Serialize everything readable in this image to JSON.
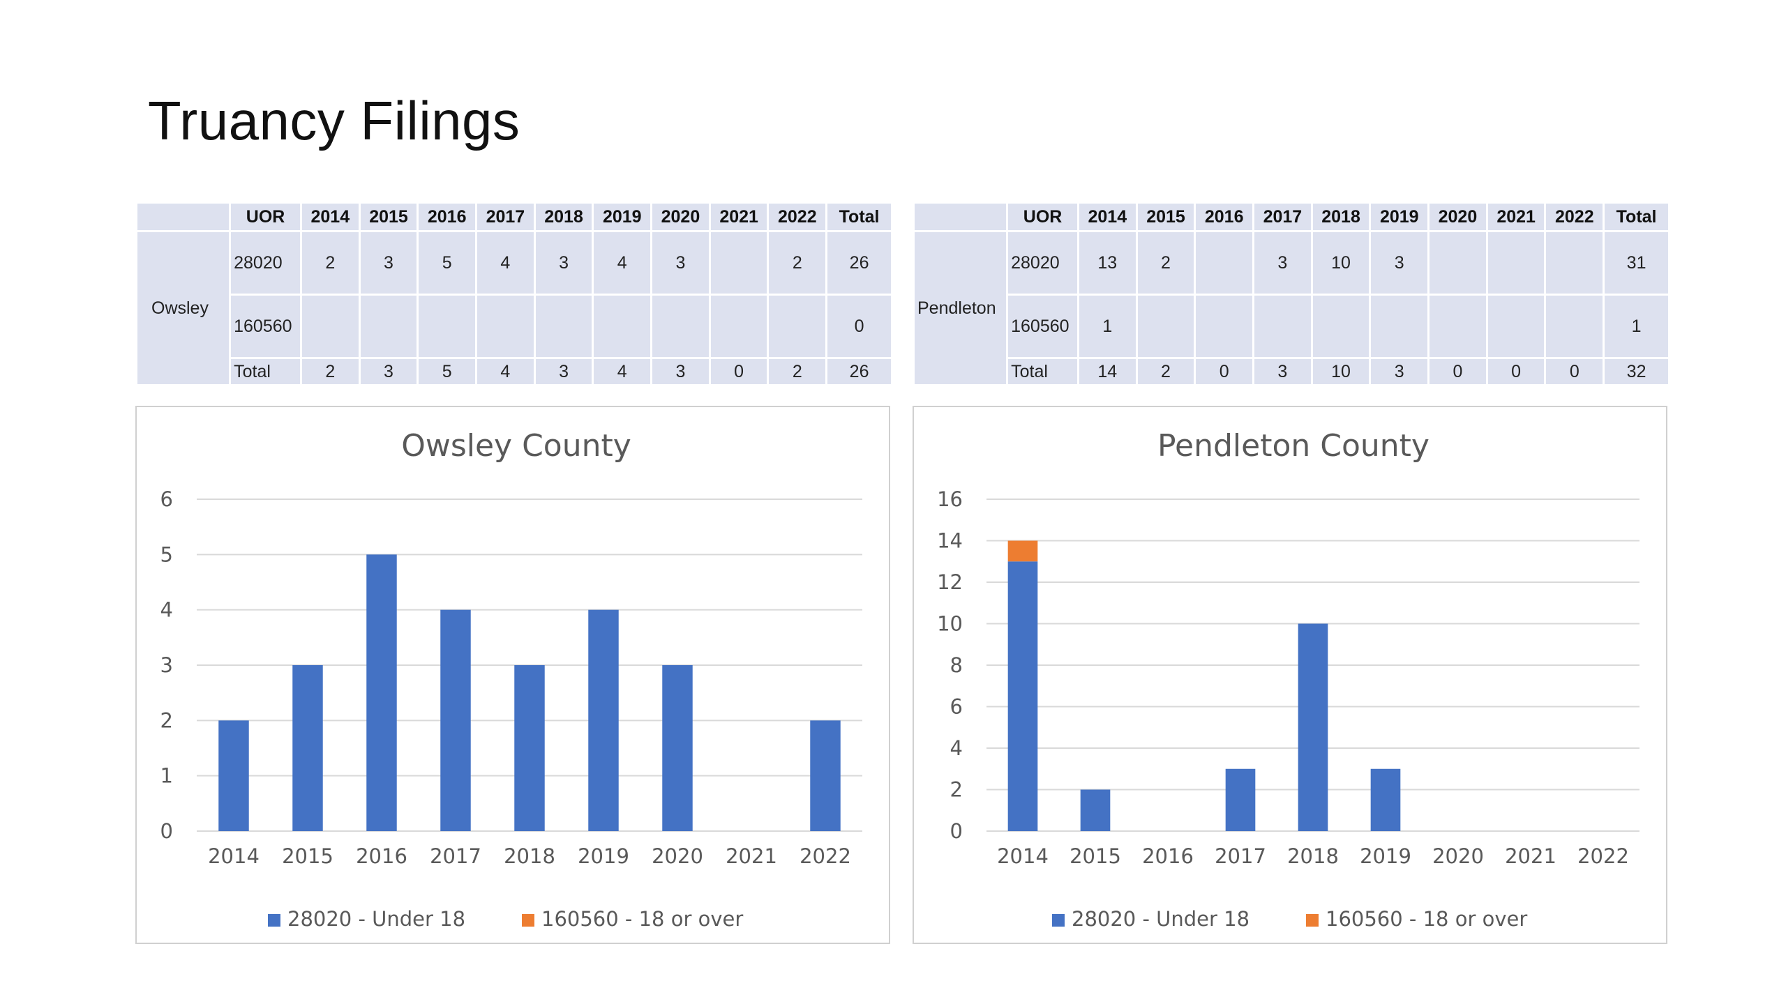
{
  "page": {
    "title": "Truancy Filings"
  },
  "tables": [
    {
      "county": "Owsley",
      "headers": [
        "UOR",
        "2014",
        "2015",
        "2016",
        "2017",
        "2018",
        "2019",
        "2020",
        "2021",
        "2022",
        "Total"
      ],
      "rows": [
        [
          "28020",
          "2",
          "3",
          "5",
          "4",
          "3",
          "4",
          "3",
          "",
          "2",
          "26"
        ],
        [
          "160560",
          "",
          "",
          "",
          "",
          "",
          "",
          "",
          "",
          "",
          "0"
        ],
        [
          "Total",
          "2",
          "3",
          "5",
          "4",
          "3",
          "4",
          "3",
          "0",
          "2",
          "26"
        ]
      ]
    },
    {
      "county": "Pendleton",
      "headers": [
        "UOR",
        "2014",
        "2015",
        "2016",
        "2017",
        "2018",
        "2019",
        "2020",
        "2021",
        "2022",
        "Total"
      ],
      "rows": [
        [
          "28020",
          "13",
          "2",
          "",
          "3",
          "10",
          "3",
          "",
          "",
          "",
          "31"
        ],
        [
          "160560",
          "1",
          "",
          "",
          "",
          "",
          "",
          "",
          "",
          "",
          "1"
        ],
        [
          "Total",
          "14",
          "2",
          "0",
          "3",
          "10",
          "3",
          "0",
          "0",
          "0",
          "32"
        ]
      ]
    }
  ],
  "chart_data": [
    {
      "type": "bar",
      "stacked": true,
      "title": "Owsley County",
      "categories": [
        "2014",
        "2015",
        "2016",
        "2017",
        "2018",
        "2019",
        "2020",
        "2021",
        "2022"
      ],
      "series": [
        {
          "name": "28020 - Under 18",
          "color": "#4472c4",
          "values": [
            2,
            3,
            5,
            4,
            3,
            4,
            3,
            0,
            2
          ]
        },
        {
          "name": "160560 - 18 or over",
          "color": "#ed7d31",
          "values": [
            0,
            0,
            0,
            0,
            0,
            0,
            0,
            0,
            0
          ]
        }
      ],
      "ylim": [
        0,
        6
      ],
      "yticks": [
        0,
        1,
        2,
        3,
        4,
        5,
        6
      ],
      "grid": true,
      "legend": "bottom"
    },
    {
      "type": "bar",
      "stacked": true,
      "title": "Pendleton County",
      "categories": [
        "2014",
        "2015",
        "2016",
        "2017",
        "2018",
        "2019",
        "2020",
        "2021",
        "2022"
      ],
      "series": [
        {
          "name": "28020 - Under 18",
          "color": "#4472c4",
          "values": [
            13,
            2,
            0,
            3,
            10,
            3,
            0,
            0,
            0
          ]
        },
        {
          "name": "160560 - 18 or over",
          "color": "#ed7d31",
          "values": [
            1,
            0,
            0,
            0,
            0,
            0,
            0,
            0,
            0
          ]
        }
      ],
      "ylim": [
        0,
        16
      ],
      "yticks": [
        0,
        2,
        4,
        6,
        8,
        10,
        12,
        14,
        16
      ],
      "grid": true,
      "legend": "bottom"
    }
  ]
}
